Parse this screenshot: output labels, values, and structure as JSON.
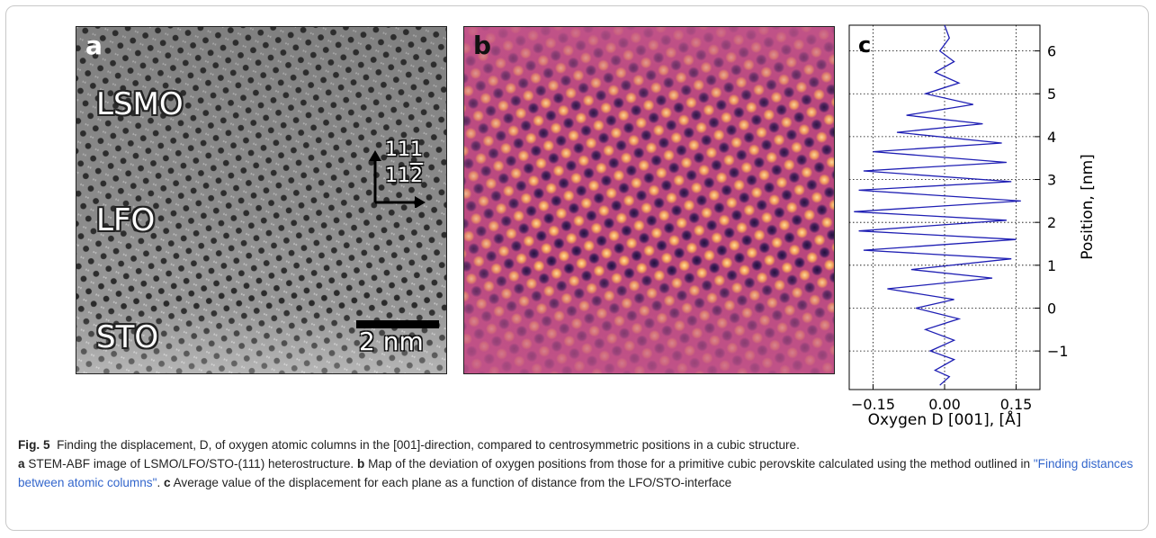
{
  "figure": {
    "panel_a": {
      "letter": "a",
      "labels": {
        "lsmo": "LSMO",
        "lfo": "LFO",
        "sto": "STO"
      },
      "direction_up": "111",
      "direction_right_digits": "11",
      "direction_right_bar": "2",
      "scale_bar_label": "2 nm"
    },
    "panel_b": {
      "letter": "b"
    },
    "panel_c": {
      "letter": "c",
      "line_color": "#1f1fb4"
    }
  },
  "chart_data": {
    "type": "line",
    "title": "",
    "xlabel": "Oxygen D [001], [Å]",
    "ylabel": "Position, [nm]",
    "xlim": [
      -0.2,
      0.2
    ],
    "ylim": [
      -1.9,
      6.6
    ],
    "xticks": [
      -0.15,
      0.0,
      0.15
    ],
    "xtick_labels": [
      "−0.15",
      "0.00",
      "0.15"
    ],
    "yticks": [
      -1,
      0,
      1,
      2,
      3,
      4,
      5,
      6
    ],
    "ytick_labels": [
      "−1",
      "0",
      "1",
      "2",
      "3",
      "4",
      "5",
      "6"
    ],
    "grid": true,
    "series": [
      {
        "x": [
          -0.01,
          0.01,
          -0.02,
          0.02,
          -0.03,
          0.02,
          -0.04,
          0.03,
          -0.06,
          0.02,
          -0.12,
          0.1,
          -0.07,
          0.14,
          -0.17,
          0.15,
          -0.18,
          0.13,
          -0.19,
          0.16,
          -0.18,
          0.14,
          -0.17,
          0.13,
          -0.15,
          0.12,
          -0.1,
          0.08,
          -0.08,
          0.06,
          -0.04,
          0.03,
          -0.02,
          0.02,
          -0.01,
          0.01,
          0.0
        ],
        "y": [
          -1.8,
          -1.6,
          -1.45,
          -1.2,
          -1.0,
          -0.75,
          -0.5,
          -0.25,
          0.0,
          0.2,
          0.45,
          0.7,
          0.9,
          1.15,
          1.35,
          1.6,
          1.8,
          2.05,
          2.25,
          2.5,
          2.75,
          2.95,
          3.2,
          3.4,
          3.65,
          3.85,
          4.1,
          4.3,
          4.5,
          4.75,
          5.0,
          5.25,
          5.5,
          5.75,
          6.0,
          6.3,
          6.6
        ]
      }
    ]
  },
  "caption": {
    "fig_number": "Fig. 5",
    "intro": "Finding the displacement, D, of oxygen atomic columns in the [001]-direction, compared to centrosymmetric positions in a cubic structure.",
    "a_label": "a",
    "a_text": "STEM-ABF image of LSMO/LFO/STO-(111) heterostructure.",
    "b_label": "b",
    "b_text_pre": "Map of the deviation of oxygen positions from those for a primitive cubic perovskite calculated using the method outlined in",
    "b_link": "\"Finding distances between atomic columns\"",
    "b_text_post": ".",
    "c_label": "c",
    "c_text": "Average value of the displacement for each plane as a function of distance from the LFO/STO-interface"
  }
}
